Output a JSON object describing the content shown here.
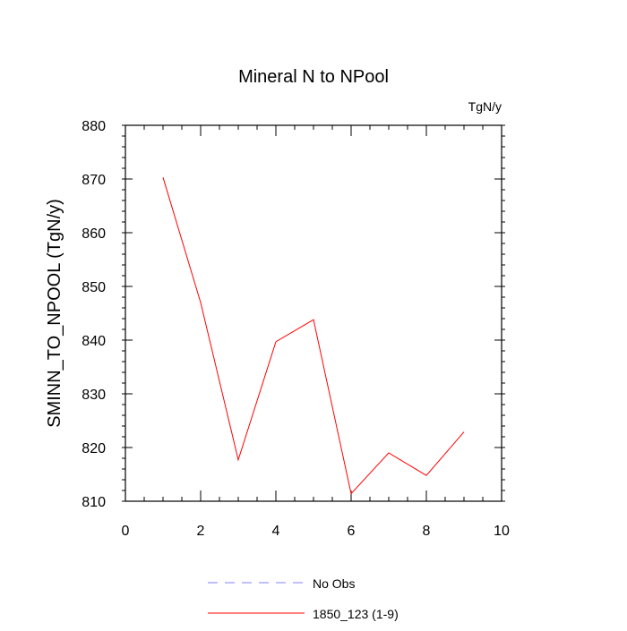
{
  "chart_data": {
    "type": "line",
    "title": "Mineral N to NPool",
    "units_label": "TgN/y",
    "xlabel": "",
    "ylabel": "SMINN_TO_NPOOL  (TgN/y)",
    "xlim": [
      0,
      10
    ],
    "ylim": [
      810,
      880
    ],
    "x_ticks": [
      0,
      2,
      4,
      6,
      8,
      10
    ],
    "y_ticks": [
      810,
      820,
      830,
      840,
      850,
      860,
      870,
      880
    ],
    "grid": false,
    "legend_position": "bottom",
    "legend": [
      {
        "name": "No Obs",
        "color": "#8080ff",
        "style": "dashed"
      },
      {
        "name": "1850_123 (1-9)",
        "color": "#ff0000",
        "style": "solid"
      }
    ],
    "series": [
      {
        "name": "1850_123 (1-9)",
        "color": "#ff0000",
        "x": [
          1,
          2,
          3,
          4,
          5,
          6,
          7,
          8,
          9
        ],
        "values": [
          870.3,
          847,
          817.7,
          839.7,
          843.8,
          811.4,
          819,
          814.8,
          822.9
        ]
      }
    ]
  }
}
